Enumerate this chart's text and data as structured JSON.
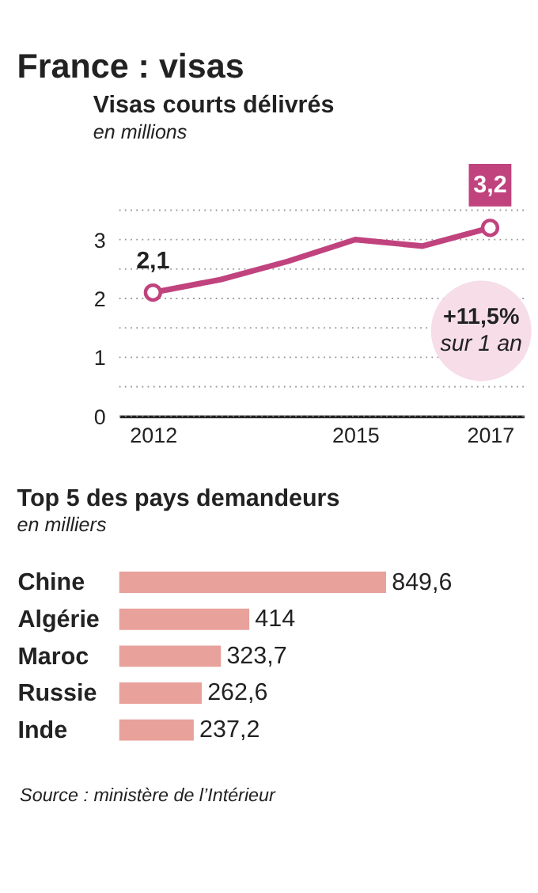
{
  "chart_data": [
    {
      "type": "line",
      "title": "Visas courts délivrés",
      "subtitle": "en millions",
      "x": [
        2012,
        2013,
        2014,
        2015,
        2016,
        2017
      ],
      "series": [
        {
          "color": "#c0437e",
          "values": [
            2.1,
            2.32,
            2.63,
            3.0,
            2.89,
            3.2
          ]
        }
      ],
      "xlim": [
        2011.5,
        2017.5
      ],
      "xticks": [
        2012,
        2015,
        2017
      ],
      "ylim": [
        0,
        3.5
      ],
      "yticks": [
        0,
        {
          "value": 0.5,
          "label": null
        },
        1,
        {
          "value": 1.5,
          "label": null
        },
        2,
        {
          "value": 2.5,
          "label": null
        },
        3,
        {
          "value": 3.5,
          "label": null
        }
      ],
      "grid": "y",
      "line_style": "solid",
      "annotations": [
        "France : visas",
        "+11,5%",
        "sur 1 an",
        {
          "text": "2,1",
          "x": 2012,
          "y": 2.1
        },
        {
          "text": "3,2",
          "x": 2017,
          "y": 3.2
        }
      ]
    },
    {
      "type": "bar",
      "orientation": "horizontal",
      "title": "Top 5 des pays demandeurs",
      "subtitle": "en milliers",
      "categories": [
        "Chine",
        "Algérie",
        "Maroc",
        "Russie",
        "Inde"
      ],
      "values": [
        849.6,
        414,
        323.7,
        262.6,
        237.2
      ],
      "color": "#e8a19b",
      "value_labels": [
        "849,6",
        "414",
        "323,7",
        "262,6",
        "237,2"
      ],
      "tick_labels": "y",
      "annotations": [
        "Source : ministère de l’Intérieur"
      ]
    }
  ]
}
